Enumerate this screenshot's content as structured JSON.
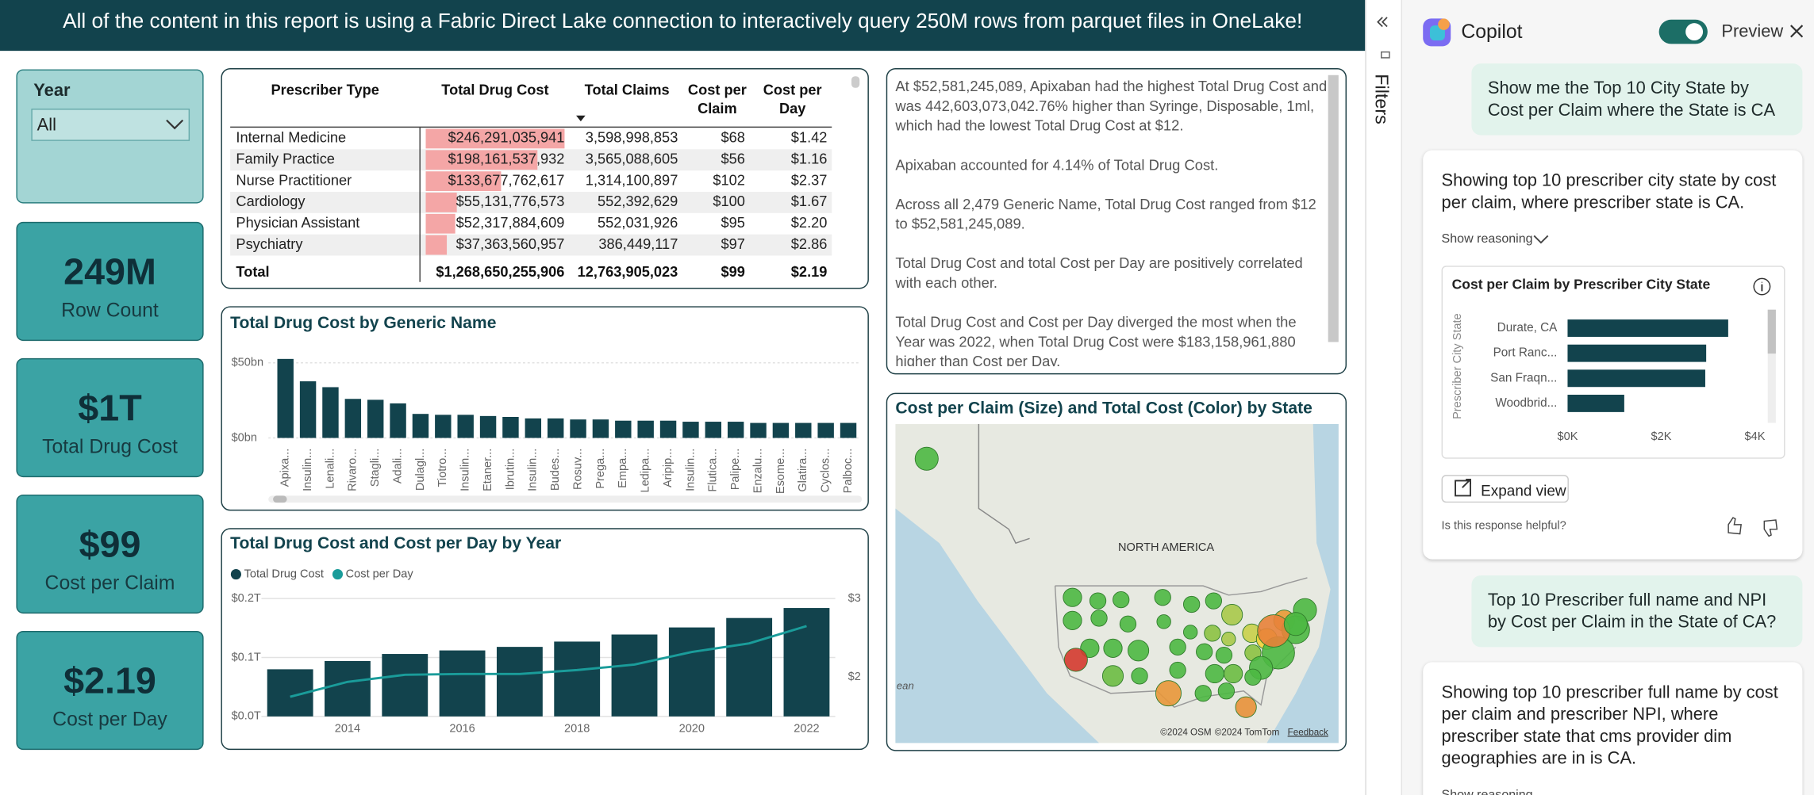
{
  "banner": "All of the content in this report is using a Fabric Direct Lake connection to interactively query 250M rows from parquet files in OneLake!",
  "filters": "Filters",
  "slicer": {
    "label": "Year",
    "value": "All"
  },
  "cards": [
    {
      "value": "249M",
      "label": "Row Count"
    },
    {
      "value": "$1T",
      "label": "Total Drug Cost"
    },
    {
      "value": "$99",
      "label": "Cost per Claim"
    },
    {
      "value": "$2.19",
      "label": "Cost per Day"
    }
  ],
  "table": {
    "headers": [
      "Prescriber Type",
      "Total Drug Cost",
      "Total Claims",
      "Cost per Claim",
      "Cost per Day"
    ],
    "rows": [
      [
        "Internal Medicine",
        "$246,291,035,941",
        "3,598,998,853",
        "$68",
        "$1.42"
      ],
      [
        "Family Practice",
        "$198,161,537,932",
        "3,565,088,605",
        "$56",
        "$1.16"
      ],
      [
        "Nurse Practitioner",
        "$133,677,762,617",
        "1,314,100,897",
        "$102",
        "$2.37"
      ],
      [
        "Cardiology",
        "$55,131,776,573",
        "552,392,629",
        "$100",
        "$1.67"
      ],
      [
        "Physician Assistant",
        "$52,317,884,609",
        "552,031,926",
        "$95",
        "$2.20"
      ],
      [
        "Psychiatry",
        "$37,363,560,957",
        "386,449,117",
        "$97",
        "$2.86"
      ]
    ],
    "total": [
      "Total",
      "$1,268,650,255,906",
      "12,763,905,023",
      "$99",
      "$2.19"
    ],
    "data_bars": [
      246291035941,
      198161537932,
      133677762617,
      55131776573,
      52317884609,
      37363560957
    ]
  },
  "narrative": [
    "At $52,581,245,089, Apixaban had the highest Total Drug Cost and was 442,603,073,042.76% higher than Syringe, Disposable, 1ml, which had the lowest Total Drug Cost at $12.",
    "Apixaban accounted for 4.14% of Total Drug Cost.",
    "Across all 2,479 Generic Name, Total Drug Cost ranged from $12 to $52,581,245,089.",
    "Total Drug Cost and total Cost per Day are positively correlated with each other.",
    "Total Drug Cost and Cost per Day diverged the most when the Year was 2022, when Total Drug Cost were $183,158,961,880 higher than Cost per Day."
  ],
  "chart_data": [
    {
      "type": "bar",
      "title": "Total Drug Cost by Generic Name",
      "color": "#12434d",
      "categories": [
        "Apixa...",
        "Insulin...",
        "Lenali...",
        "Rivaro...",
        "Stagli...",
        "Adali...",
        "Dulagl...",
        "Tiotro...",
        "Insulin...",
        "Etaner...",
        "Ibrutin...",
        "Insulin...",
        "Budes...",
        "Rosuv...",
        "Prega...",
        "Empa...",
        "Ledipa...",
        "Aripip...",
        "Insulin...",
        "Flutica...",
        "Palipe...",
        "Enzalu...",
        "Esome...",
        "Glatira...",
        "Cyclos...",
        "Palboc..."
      ],
      "values": [
        52.6,
        37.7,
        33.8,
        26,
        25.4,
        23,
        16,
        15.4,
        15.4,
        14.6,
        14,
        13,
        13,
        12.3,
        12.3,
        11.5,
        11.5,
        11.5,
        10.8,
        10.8,
        10.8,
        10,
        10,
        10,
        10,
        10
      ],
      "ylim": [
        0,
        57
      ],
      "yticks": [
        {
          "value": 0,
          "label": "$0bn"
        },
        {
          "value": 50,
          "label": "$50bn"
        }
      ],
      "grid": true
    },
    {
      "type": "combo",
      "title": "Total Drug Cost and Cost per Day by Year",
      "categories": [
        null,
        "2014",
        null,
        "2016",
        null,
        "2018",
        null,
        "2020",
        null,
        "2022"
      ],
      "series": [
        {
          "name": "Total Drug Cost",
          "color": "#12434d",
          "values": [
            0.08,
            0.094,
            0.106,
            0.112,
            0.118,
            0.127,
            0.139,
            0.151,
            0.167,
            0.184
          ]
        },
        {
          "name": "Cost per Day",
          "color": "#1a9c9a",
          "axis": "y2",
          "values": [
            1.75,
            1.94,
            2.03,
            2.04,
            2.04,
            2.09,
            2.16,
            2.32,
            2.43,
            2.65
          ]
        }
      ],
      "ylim": [
        0,
        0.2
      ],
      "yticks": [
        {
          "value": 0,
          "label": "$0.0T"
        },
        {
          "value": 0.1,
          "label": "$0.1T"
        },
        {
          "value": 0.2,
          "label": "$0.2T"
        }
      ],
      "y2lim": [
        1.5,
        3
      ],
      "y2ticks": [
        {
          "value": 2,
          "label": "$2"
        },
        {
          "value": 3,
          "label": "$3"
        }
      ],
      "grid": true
    },
    {
      "type": "map",
      "title": "Cost per Claim (Size) and Total Cost (Color) by State",
      "annotations": [
        "NORTH AMERICA",
        "ean",
        "©2024 OSM",
        "©2024 TomTom",
        "Feedback"
      ]
    },
    {
      "type": "hbar",
      "title": "Cost per Claim by Prescriber City State",
      "color": "#12434d",
      "ylabel": "Prescriber City State",
      "categories": [
        "Durate, CA",
        "Port Ranc...",
        "San Fraqn...",
        "Woodbrid..."
      ],
      "values": [
        3.43,
        2.96,
        2.94,
        1.21
      ],
      "xlim": [
        0,
        4.2
      ],
      "xticks": [
        {
          "value": 0,
          "label": "$0K"
        },
        {
          "value": 2,
          "label": "$2K"
        },
        {
          "value": 4,
          "label": "$4K"
        }
      ]
    }
  ],
  "copilot": {
    "title": "Copilot",
    "toggle_label": "Preview",
    "prompts": [
      "Show me the Top 10 City State by Cost per Claim where the State is CA",
      "Top 10 Prescriber full name and NPI by Cost per Claim in the State of CA?"
    ],
    "responses": [
      {
        "text": "Showing top 10 prescriber city state by cost per claim, where prescriber state is CA.",
        "reasoning": "Show reasoning",
        "button": "Expand view",
        "feedback": "Is this response helpful?"
      },
      {
        "text": "Showing top 10 prescriber full name by cost per claim and prescriber NPI, where prescriber state that cms provider dim geographies are in is CA.",
        "reasoning": "Show reasoning"
      }
    ]
  }
}
